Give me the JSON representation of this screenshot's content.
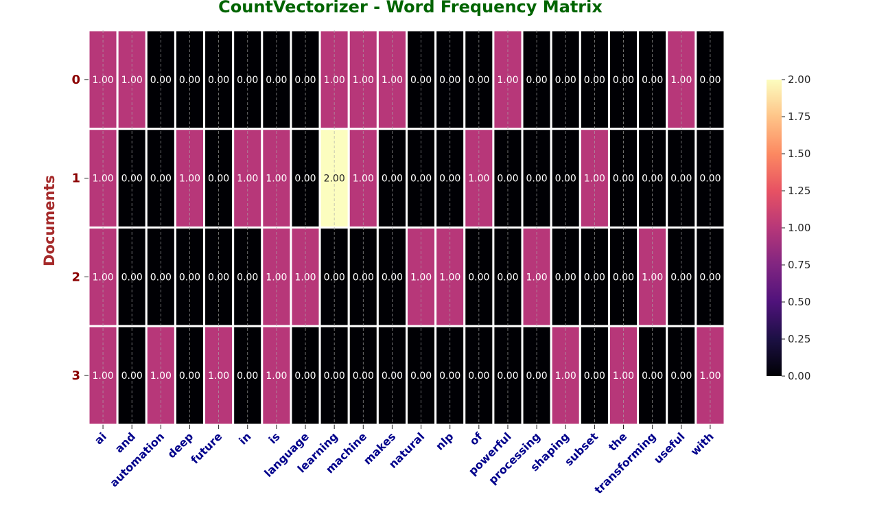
{
  "chart_data": {
    "type": "heatmap",
    "title": "CountVectorizer - Word Frequency Matrix",
    "xlabel": "",
    "ylabel": "Documents",
    "x": [
      "ai",
      "and",
      "automation",
      "deep",
      "future",
      "in",
      "is",
      "language",
      "learning",
      "machine",
      "makes",
      "natural",
      "nlp",
      "of",
      "powerful",
      "processing",
      "shaping",
      "subset",
      "the",
      "transforming",
      "useful",
      "with"
    ],
    "y": [
      "0",
      "1",
      "2",
      "3"
    ],
    "values": [
      [
        1,
        1,
        0,
        0,
        0,
        0,
        0,
        0,
        1,
        1,
        1,
        0,
        0,
        0,
        1,
        0,
        0,
        0,
        0,
        0,
        1,
        0
      ],
      [
        1,
        0,
        0,
        1,
        0,
        1,
        1,
        0,
        2,
        1,
        0,
        0,
        0,
        1,
        0,
        0,
        0,
        1,
        0,
        0,
        0,
        0
      ],
      [
        1,
        0,
        0,
        0,
        0,
        0,
        1,
        1,
        0,
        0,
        0,
        1,
        1,
        0,
        0,
        1,
        0,
        0,
        0,
        1,
        0,
        0
      ],
      [
        1,
        0,
        1,
        0,
        1,
        0,
        1,
        0,
        0,
        0,
        0,
        0,
        0,
        0,
        0,
        0,
        1,
        0,
        1,
        0,
        0,
        1
      ]
    ],
    "value_format": "2 decimals",
    "colormap": "magma",
    "colorbar": {
      "range": [
        0,
        2
      ],
      "ticks": [
        "0.00",
        "0.25",
        "0.50",
        "0.75",
        "1.00",
        "1.25",
        "1.50",
        "1.75",
        "2.00"
      ]
    },
    "grid": true,
    "colors": {
      "title": "#006400",
      "ylabel": "#a52a2a",
      "ytick": "#8b0000",
      "xtick": "#00008b",
      "cell_gap": "#ffffff",
      "low": "#000004",
      "mid": "#b73779",
      "high": "#fcfdbf"
    }
  }
}
